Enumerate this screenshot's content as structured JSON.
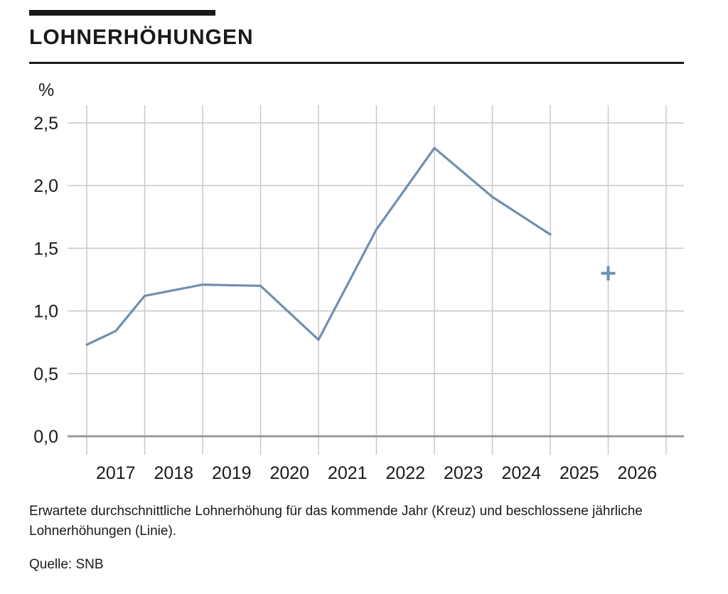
{
  "header": {
    "title": "LOHNERHÖHUNGEN"
  },
  "caption": "Erwartete durchschnittliche Lohnerhöhung für das kommende Jahr (Kreuz) und beschlossene jährliche Lohnerhöhungen (Linie).",
  "source": "Quelle: SNB",
  "chart_data": {
    "type": "line",
    "title": "LOHNERHÖHUNGEN",
    "ylabel": "%",
    "xlabel": "",
    "ylim": [
      0,
      2.5
    ],
    "y_ticks": [
      "0,0",
      "0,5",
      "1,0",
      "1,5",
      "2,0",
      "2,5"
    ],
    "x_ticks": [
      "2017",
      "2018",
      "2019",
      "2020",
      "2021",
      "2022",
      "2023",
      "2024",
      "2025",
      "2026"
    ],
    "grid": true,
    "series": [
      {
        "color": "#6f8fb0",
        "style": "line",
        "x": [
          2016.5,
          2017.0,
          2017.5,
          2018.5,
          2019.5,
          2020.5,
          2021.5,
          2022.5,
          2023.5,
          2024.5
        ],
        "y": [
          0.73,
          0.84,
          1.12,
          1.21,
          1.2,
          0.77,
          1.65,
          2.3,
          1.91,
          1.61
        ]
      },
      {
        "color": "#6f8fb0",
        "style": "cross",
        "x": [
          2025.5
        ],
        "y": [
          1.3
        ]
      }
    ]
  }
}
